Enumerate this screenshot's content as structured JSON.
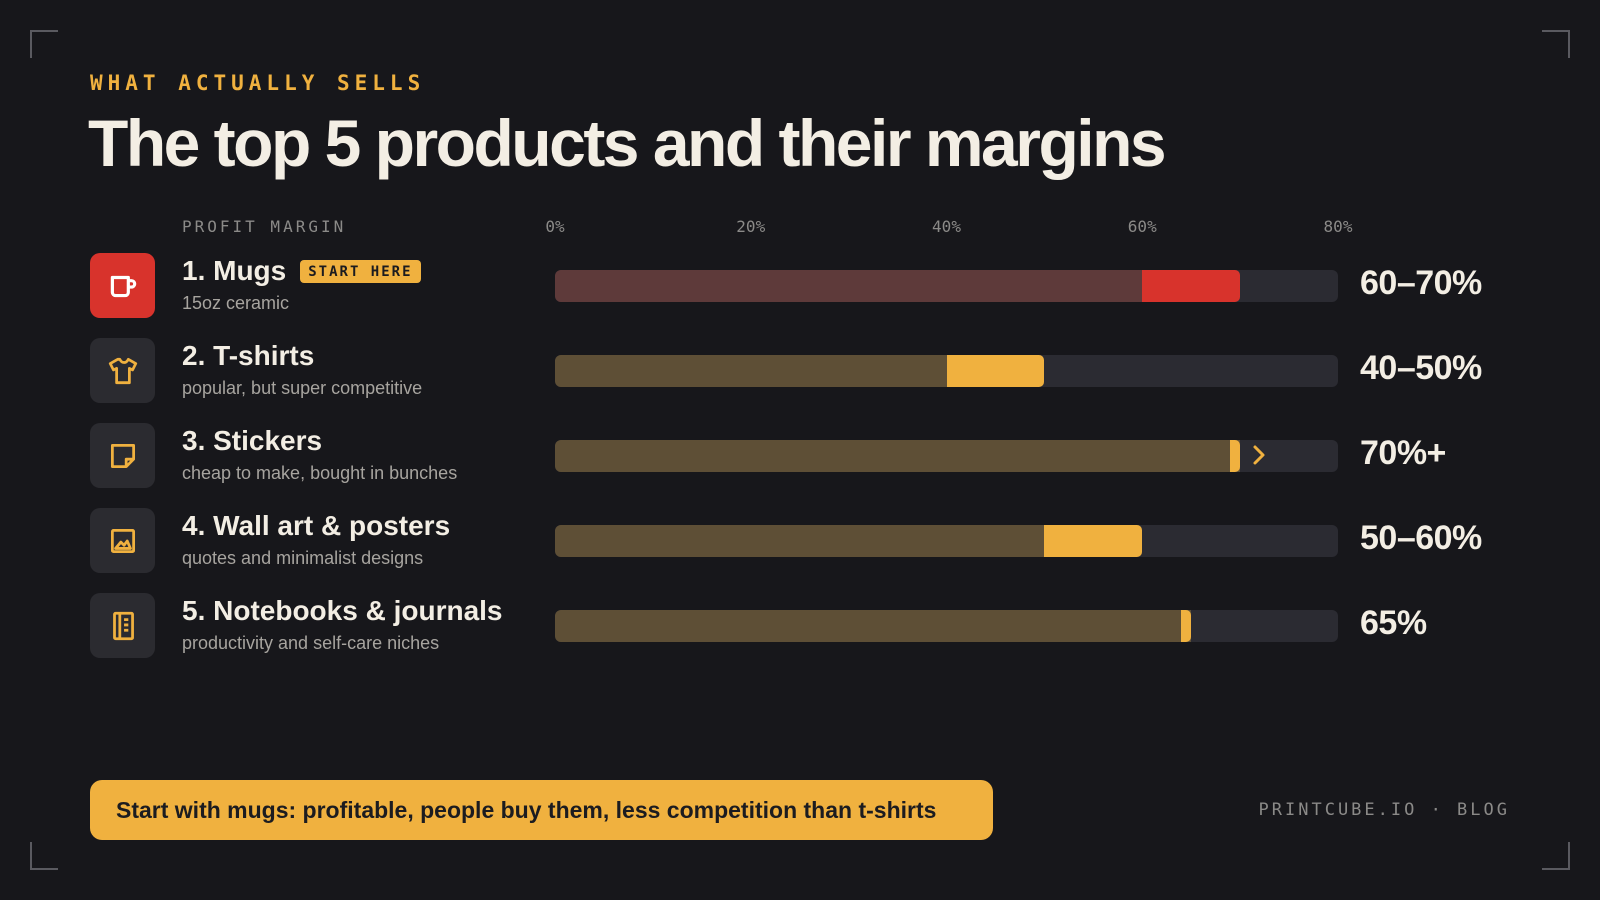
{
  "eyebrow": "WHAT ACTUALLY SELLS",
  "title": "The top 5 products and their margins",
  "footer": "PRINTCUBE.IO · BLOG",
  "callout": "Start with mugs: profitable, people buy them, less competition than t-shirts",
  "colors": {
    "accent": "#f0b13f",
    "highlight": "#d8332c",
    "accent_dim": "#5e4f36",
    "highlight_dim": "#5e3a3a",
    "track": "#2b2b32"
  },
  "chart_data": {
    "type": "bar",
    "orientation": "horizontal",
    "axis_label": "PROFIT MARGIN",
    "xlim": [
      0,
      80
    ],
    "ticks": [
      "0%",
      "20%",
      "40%",
      "60%",
      "80%"
    ],
    "tick_values": [
      0,
      20,
      40,
      60,
      80
    ],
    "rows": [
      {
        "rank_name": "1. Mugs",
        "badge": "START HERE",
        "subtitle": "15oz ceramic",
        "low": 60,
        "high": 70,
        "label": "60–70%",
        "highlight": true,
        "icon": "mug-icon"
      },
      {
        "rank_name": "2. T-shirts",
        "badge": "",
        "subtitle": "popular, but super competitive",
        "low": 40,
        "high": 50,
        "label": "40–50%",
        "highlight": false,
        "icon": "tshirt-icon"
      },
      {
        "rank_name": "3. Stickers",
        "badge": "",
        "subtitle": "cheap to make, bought in bunches",
        "low": 70,
        "high": 70,
        "open_ended": true,
        "label": "70%+",
        "highlight": false,
        "icon": "sticker-icon"
      },
      {
        "rank_name": "4. Wall art & posters",
        "badge": "",
        "subtitle": "quotes and minimalist designs",
        "low": 50,
        "high": 60,
        "label": "50–60%",
        "highlight": false,
        "icon": "picture-icon"
      },
      {
        "rank_name": "5. Notebooks & journals",
        "badge": "",
        "subtitle": "productivity and self-care niches",
        "low": 65,
        "high": 65,
        "label": "65%",
        "highlight": false,
        "icon": "notebook-icon"
      }
    ]
  }
}
